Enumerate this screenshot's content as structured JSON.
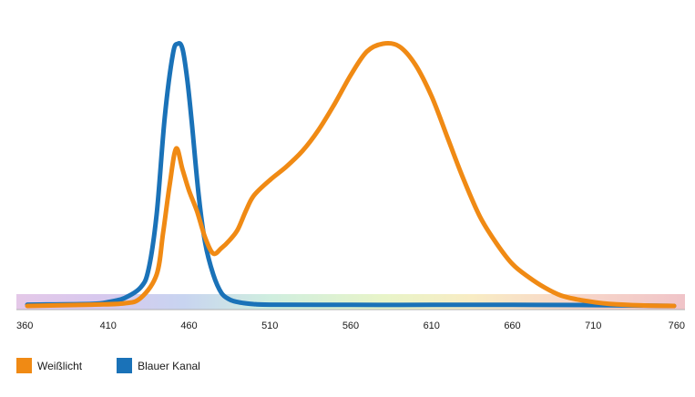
{
  "chart_data": {
    "type": "line",
    "title": "",
    "xlabel": "",
    "ylabel": "",
    "xlim": [
      360,
      760
    ],
    "ylim": [
      0,
      1
    ],
    "x_ticks": [
      "360",
      "410",
      "460",
      "510",
      "560",
      "610",
      "660",
      "710",
      "760"
    ],
    "grid": false,
    "legend_position": "bottom-left",
    "series": [
      {
        "name": "Weißlicht",
        "color": "#f08a14",
        "x": [
          360,
          400,
          420,
          430,
          440,
          444,
          448,
          452,
          456,
          460,
          465,
          470,
          475,
          480,
          485,
          490,
          495,
          500,
          510,
          520,
          530,
          540,
          550,
          560,
          570,
          580,
          590,
          600,
          610,
          620,
          630,
          640,
          650,
          660,
          670,
          680,
          690,
          700,
          710,
          720,
          740,
          760
        ],
        "y": [
          0.0,
          0.005,
          0.01,
          0.03,
          0.12,
          0.28,
          0.46,
          0.6,
          0.52,
          0.44,
          0.36,
          0.26,
          0.2,
          0.22,
          0.25,
          0.29,
          0.36,
          0.42,
          0.48,
          0.53,
          0.59,
          0.67,
          0.77,
          0.88,
          0.97,
          1.0,
          0.99,
          0.92,
          0.8,
          0.64,
          0.48,
          0.34,
          0.24,
          0.16,
          0.11,
          0.07,
          0.04,
          0.025,
          0.015,
          0.008,
          0.002,
          0.0
        ]
      },
      {
        "name": "Blauer Kanal",
        "color": "#1a72b8",
        "x": [
          360,
          400,
          410,
          420,
          430,
          435,
          440,
          445,
          450,
          453,
          456,
          459,
          462,
          466,
          470,
          475,
          480,
          485,
          490,
          495,
          500,
          510,
          560,
          610,
          660,
          710,
          760
        ],
        "y": [
          0.005,
          0.008,
          0.015,
          0.03,
          0.07,
          0.14,
          0.35,
          0.72,
          0.96,
          1.0,
          0.98,
          0.86,
          0.68,
          0.42,
          0.24,
          0.12,
          0.05,
          0.025,
          0.015,
          0.01,
          0.007,
          0.005,
          0.004,
          0.004,
          0.004,
          0.003,
          0.0
        ]
      }
    ]
  }
}
